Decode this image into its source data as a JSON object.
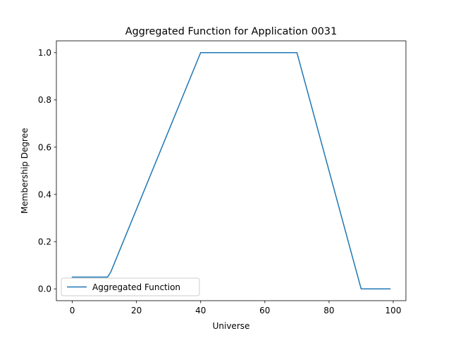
{
  "chart_data": {
    "type": "line",
    "title": "Aggregated Function for Application 0031",
    "xlabel": "Universe",
    "ylabel": "Membership Degree",
    "xlim": [
      -4.95,
      103.95
    ],
    "ylim": [
      -0.05,
      1.05
    ],
    "xticks": [
      0,
      20,
      40,
      60,
      80,
      100
    ],
    "yticks": [
      0.0,
      0.2,
      0.4,
      0.6,
      0.8,
      1.0
    ],
    "xtick_labels": [
      "0",
      "20",
      "40",
      "60",
      "80",
      "100"
    ],
    "ytick_labels": [
      "0.0",
      "0.2",
      "0.4",
      "0.6",
      "0.8",
      "1.0"
    ],
    "grid": false,
    "legend_position": "lower-left",
    "series": [
      {
        "name": "Aggregated Function",
        "color": "#1f77b4",
        "x": [
          0,
          10,
          11,
          12,
          40,
          70,
          90,
          99
        ],
        "y": [
          0.05,
          0.05,
          0.05,
          0.0714,
          1.0,
          1.0,
          0.0,
          0.0
        ]
      }
    ]
  }
}
